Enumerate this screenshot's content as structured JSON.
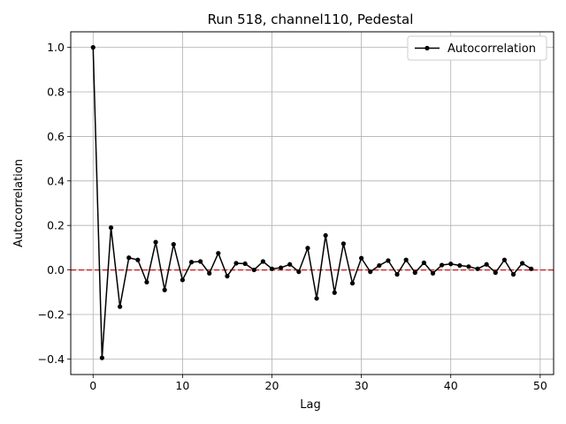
{
  "chart_data": {
    "type": "line",
    "title": "Run 518, channel110, Pedestal",
    "xlabel": "Lag",
    "ylabel": "Autocorrelation",
    "xlim": [
      -2.5,
      51.5
    ],
    "ylim": [
      -0.47,
      1.07
    ],
    "xticks": [
      0,
      10,
      20,
      30,
      40,
      50
    ],
    "yticks": [
      -0.4,
      -0.2,
      0.0,
      0.2,
      0.4,
      0.6,
      0.8,
      1.0
    ],
    "xtick_labels": [
      "0",
      "10",
      "20",
      "30",
      "40",
      "50"
    ],
    "ytick_labels": [
      "−0.4",
      "−0.2",
      "0.0",
      "0.2",
      "0.4",
      "0.6",
      "0.8",
      "1.0"
    ],
    "grid": true,
    "legend_position": "top-right",
    "series": [
      {
        "name": "Autocorrelation",
        "color": "#000000",
        "marker": "circle",
        "x": [
          0,
          1,
          2,
          3,
          4,
          5,
          6,
          7,
          8,
          9,
          10,
          11,
          12,
          13,
          14,
          15,
          16,
          17,
          18,
          19,
          20,
          21,
          22,
          23,
          24,
          25,
          26,
          27,
          28,
          29,
          30,
          31,
          32,
          33,
          34,
          35,
          36,
          37,
          38,
          39,
          40,
          41,
          42,
          43,
          44,
          45,
          46,
          47,
          48,
          49
        ],
        "values": [
          1.0,
          -0.395,
          0.19,
          -0.165,
          0.055,
          0.045,
          -0.055,
          0.125,
          -0.09,
          0.115,
          -0.045,
          0.035,
          0.038,
          -0.015,
          0.075,
          -0.028,
          0.03,
          0.028,
          0.0,
          0.038,
          0.005,
          0.01,
          0.025,
          -0.008,
          0.098,
          -0.128,
          0.155,
          -0.102,
          0.118,
          -0.06,
          0.053,
          -0.008,
          0.02,
          0.042,
          -0.02,
          0.045,
          -0.012,
          0.032,
          -0.015,
          0.022,
          0.027,
          0.02,
          0.015,
          0.005,
          0.025,
          -0.012,
          0.045,
          -0.02,
          0.03,
          0.005
        ]
      }
    ],
    "reference_lines": [
      {
        "y": 0.0,
        "color": "#d62728",
        "style": "dashed"
      }
    ]
  }
}
